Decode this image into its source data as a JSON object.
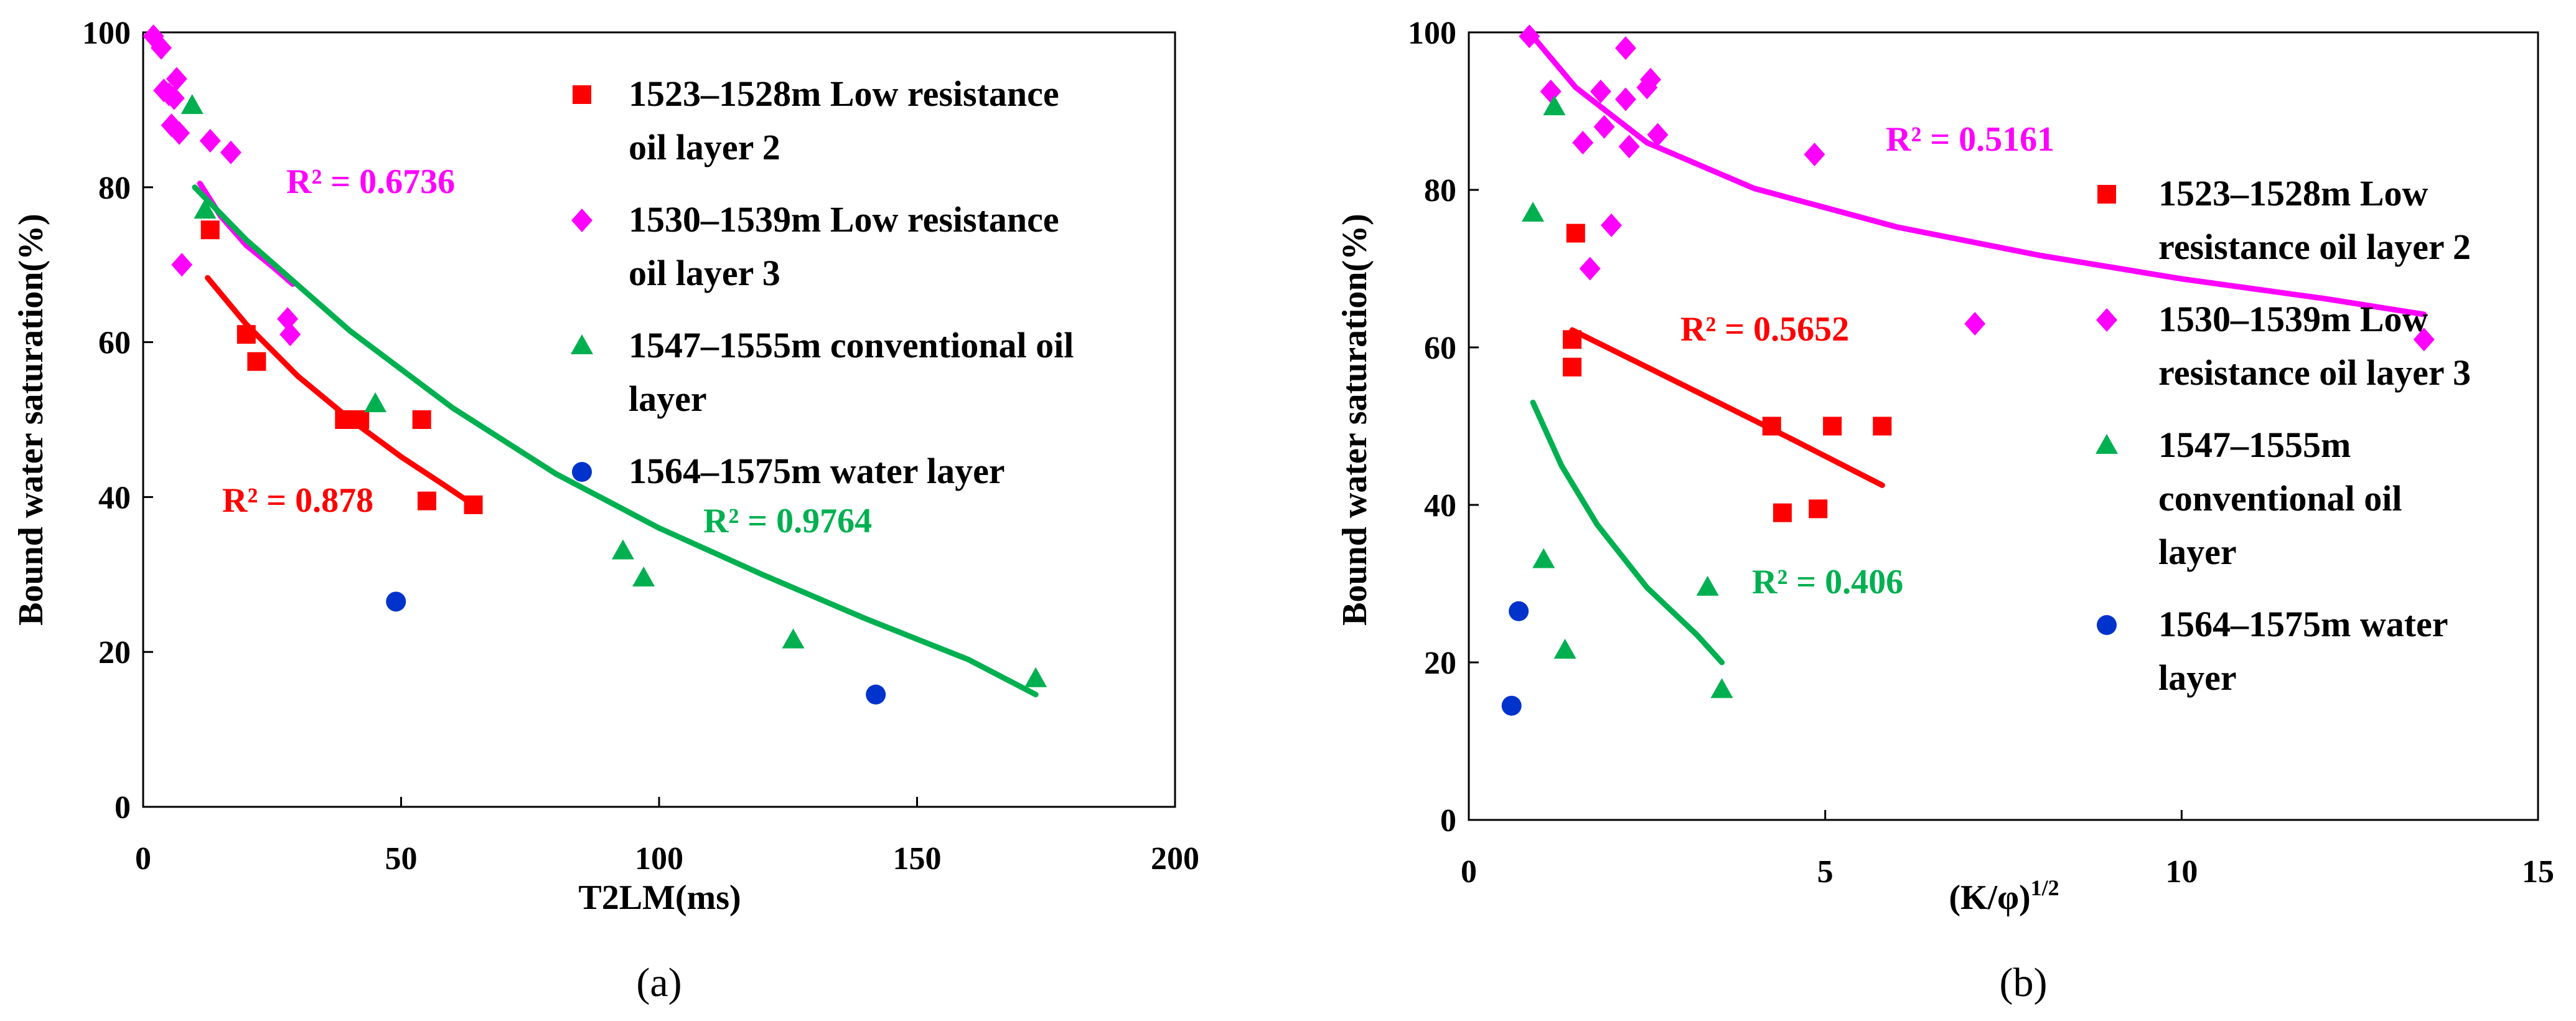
{
  "colors": {
    "red": "#ff0000",
    "magenta": "#ff00ff",
    "green": "#00b050",
    "blue": "#0033cc"
  },
  "chart_data": [
    {
      "type": "scatter",
      "panel_label": "(a)",
      "xlabel": "T2LM(ms)",
      "ylabel": "Bound water saturation(%)",
      "xlim": [
        0,
        200
      ],
      "ylim": [
        0,
        100
      ],
      "xticks": [
        0,
        50,
        100,
        150,
        200
      ],
      "yticks": [
        0,
        20,
        40,
        60,
        80,
        100
      ],
      "legend_position": "top-right",
      "series": [
        {
          "name": "1523–1528m Low resistance oil layer 2",
          "legend_lines": [
            "1523–1528m Low resistance",
            "oil layer 2"
          ],
          "marker": "square",
          "color": "#ff0000",
          "points": [
            [
              13,
              74.5
            ],
            [
              20,
              61
            ],
            [
              22,
              57.5
            ],
            [
              39,
              50
            ],
            [
              42,
              50
            ],
            [
              54,
              50
            ],
            [
              55,
              39.5
            ],
            [
              64,
              39
            ]
          ]
        },
        {
          "name": "1530–1539m Low resistance oil layer 3",
          "legend_lines": [
            "1530–1539m Low resistance",
            "oil layer 3"
          ],
          "marker": "diamond",
          "color": "#ff00ff",
          "points": [
            [
              2,
              99.5
            ],
            [
              3.5,
              98
            ],
            [
              4,
              92.5
            ],
            [
              5,
              92
            ],
            [
              5.5,
              88
            ],
            [
              6,
              91.5
            ],
            [
              6.5,
              94
            ],
            [
              7,
              87
            ],
            [
              7.5,
              70
            ],
            [
              13,
              86
            ],
            [
              17,
              84.5
            ],
            [
              28,
              63
            ],
            [
              28.5,
              61
            ]
          ]
        },
        {
          "name": "1547–1555m conventional oil layer",
          "legend_lines": [
            "1547–1555m conventional oil",
            "layer"
          ],
          "marker": "triangle",
          "color": "#00b050",
          "points": [
            [
              9.5,
              90.5
            ],
            [
              12,
              77
            ],
            [
              45,
              52
            ],
            [
              93,
              33
            ],
            [
              97,
              29.5
            ],
            [
              126,
              21.5
            ],
            [
              173,
              16.5
            ]
          ]
        },
        {
          "name": "1564–1575m water layer",
          "legend_lines": [
            "1564–1575m water layer"
          ],
          "marker": "circle",
          "color": "#0033cc",
          "points": [
            [
              49,
              26.5
            ],
            [
              142,
              14.5
            ]
          ]
        }
      ],
      "trendlines": [
        {
          "series": "1530–1539m Low resistance oil layer 3",
          "color": "#ff00ff",
          "r2_label": "R² = 0.6736",
          "points": [
            [
              11,
              80.5
            ],
            [
              15,
              76.3
            ],
            [
              20,
              72.5
            ],
            [
              25,
              69.8
            ],
            [
              29,
              67.5
            ]
          ]
        },
        {
          "series": "1523–1528m Low resistance oil layer 2",
          "color": "#ff0000",
          "r2_label": "R² = 0.878",
          "points": [
            [
              12.5,
              68.3
            ],
            [
              20,
              62.3
            ],
            [
              30,
              55.6
            ],
            [
              40,
              50.1
            ],
            [
              50,
              45.2
            ],
            [
              58,
              41.7
            ],
            [
              64,
              39
            ]
          ]
        },
        {
          "series": "1547–1555m conventional oil layer",
          "color": "#00b050",
          "r2_label": "R² = 0.9764",
          "points": [
            [
              10,
              80
            ],
            [
              20,
              73.2
            ],
            [
              40,
              61.5
            ],
            [
              60,
              51.5
            ],
            [
              80,
              43
            ],
            [
              100,
              36
            ],
            [
              120,
              30
            ],
            [
              140,
              24.3
            ],
            [
              160,
              19
            ],
            [
              173,
              14.5
            ]
          ]
        }
      ]
    },
    {
      "type": "scatter",
      "panel_label": "(b)",
      "xlabel": "(K/φ)",
      "xlabel_sup": "1/2",
      "ylabel": "Bound water saturation(%)",
      "xlim": [
        0,
        15
      ],
      "ylim": [
        0,
        100
      ],
      "xticks": [
        0,
        5,
        10,
        15
      ],
      "yticks": [
        0,
        20,
        40,
        60,
        80,
        100
      ],
      "legend_position": "right",
      "series": [
        {
          "name": "1523–1528m Low resistance oil layer 2",
          "legend_lines": [
            "1523–1528m Low",
            "resistance oil layer 2"
          ],
          "marker": "square",
          "color": "#ff0000",
          "points": [
            [
              1.5,
              74.5
            ],
            [
              1.45,
              61
            ],
            [
              1.45,
              57.5
            ],
            [
              4.25,
              50
            ],
            [
              5.1,
              50
            ],
            [
              5.8,
              50
            ],
            [
              4.4,
              39
            ],
            [
              4.9,
              39.5
            ]
          ]
        },
        {
          "name": "1530–1539m Low resistance oil layer 3",
          "legend_lines": [
            "1530–1539m Low",
            "resistance oil layer 3"
          ],
          "marker": "diamond",
          "color": "#ff00ff",
          "points": [
            [
              0.85,
              99.5
            ],
            [
              1.15,
              92.5
            ],
            [
              1.6,
              86
            ],
            [
              1.7,
              70
            ],
            [
              1.85,
              92.5
            ],
            [
              1.9,
              88
            ],
            [
              2,
              75.5
            ],
            [
              2.2,
              98
            ],
            [
              2.2,
              91.5
            ],
            [
              2.25,
              85.5
            ],
            [
              2.5,
              93
            ],
            [
              2.55,
              94
            ],
            [
              2.65,
              87
            ],
            [
              4.85,
              84.5
            ],
            [
              7.1,
              63
            ],
            [
              13.4,
              61
            ]
          ]
        },
        {
          "name": "1547–1555m conventional oil layer",
          "legend_lines": [
            "1547–1555m",
            "conventional oil",
            "layer"
          ],
          "marker": "triangle",
          "color": "#00b050",
          "points": [
            [
              1.2,
              90.5
            ],
            [
              0.9,
              77
            ],
            [
              1.05,
              33
            ],
            [
              1.35,
              21.5
            ],
            [
              3.35,
              29.5
            ],
            [
              3.55,
              16.5
            ]
          ]
        },
        {
          "name": "1564–1575m water layer",
          "legend_lines": [
            "1564–1575m water",
            "layer"
          ],
          "marker": "circle",
          "color": "#0033cc",
          "points": [
            [
              0.7,
              26.5
            ],
            [
              0.6,
              14.5
            ]
          ]
        }
      ],
      "trendlines": [
        {
          "series": "1530–1539m Low resistance oil layer 3",
          "color": "#ff00ff",
          "r2_label": "R² = 0.5161",
          "points": [
            [
              0.85,
              100
            ],
            [
              1.5,
              93
            ],
            [
              2.5,
              86
            ],
            [
              4,
              80.2
            ],
            [
              6,
              75.3
            ],
            [
              8,
              71.7
            ],
            [
              10,
              68.7
            ],
            [
              12,
              66.2
            ],
            [
              13.4,
              64.2
            ]
          ]
        },
        {
          "series": "1523–1528m Low resistance oil layer 2",
          "color": "#ff0000",
          "r2_label": "R² = 0.5652",
          "points": [
            [
              1.45,
              62.2
            ],
            [
              2.5,
              57.5
            ],
            [
              3.5,
              53
            ],
            [
              4.5,
              48.5
            ],
            [
              5.8,
              42.5
            ]
          ]
        },
        {
          "series": "1547–1555m conventional oil layer",
          "color": "#00b050",
          "r2_label": "R² = 0.406",
          "points": [
            [
              0.9,
              53
            ],
            [
              1.3,
              45
            ],
            [
              1.8,
              37.5
            ],
            [
              2.5,
              29.5
            ],
            [
              3.2,
              23.5
            ],
            [
              3.55,
              20
            ]
          ]
        }
      ]
    }
  ]
}
